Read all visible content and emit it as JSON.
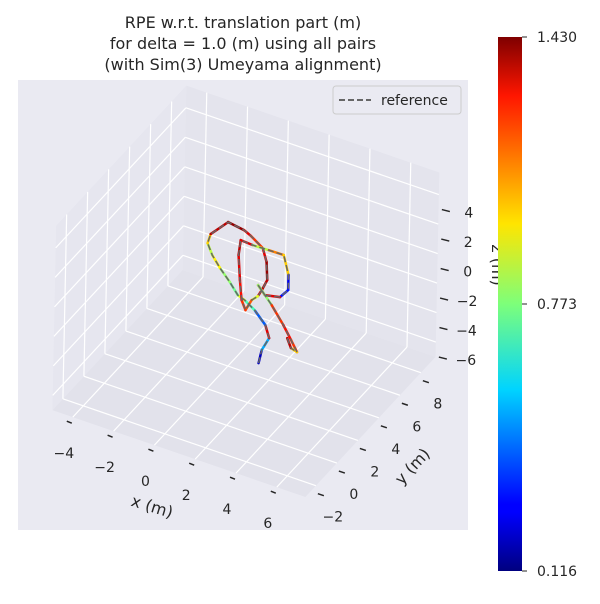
{
  "chart_data": {
    "type": "line",
    "projection": "3d",
    "title": [
      "RPE w.r.t. translation part (m)",
      "for delta = 1.0 (m) using all pairs",
      "(with Sim(3) Umeyama alignment)"
    ],
    "xlabel": "x (m)",
    "ylabel": "y (m)",
    "zlabel": "z (m)",
    "xlim": [
      -5,
      7.4
    ],
    "ylim": [
      -3,
      9.4
    ],
    "zlim": [
      -7,
      5.5
    ],
    "xticks": [
      -4,
      -2,
      0,
      2,
      4,
      6
    ],
    "yticks": [
      -2,
      0,
      2,
      4,
      6,
      8
    ],
    "zticks": [
      4,
      2,
      0,
      -2,
      -4,
      -6
    ],
    "grid": true,
    "legend": {
      "placement": "top-right",
      "entries": [
        {
          "name": "reference",
          "style": "dashed",
          "color": "#666666"
        }
      ]
    },
    "colorbar": {
      "colormap": "jet",
      "min": 0.116,
      "max": 1.43,
      "tick_labels": [
        "1.430",
        "0.773",
        "0.116"
      ],
      "ticks": [
        1.43,
        0.773,
        0.116
      ]
    },
    "trajectory": {
      "x": [
        1.99,
        2.13,
        2.48,
        2.28,
        1.74,
        1.25,
        0.91,
        0.51,
        0.02,
        -0.37,
        -0.61,
        -0.47,
        0.37,
        1.15,
        1.5,
        2.08,
        2.28,
        2.33,
        2.08,
        1.89,
        1.59,
        1.3,
        1.1,
        1.0,
        0.91,
        1.0,
        1.59,
        2.38,
        3.11,
        3.36,
        3.36,
        2.97,
        2.23,
        1.89,
        2.57,
        3.16,
        3.55,
        3.85,
        3.55,
        3.36
      ],
      "y": [
        3,
        3,
        3,
        3,
        3,
        3,
        3,
        3,
        3,
        3,
        3,
        3,
        3,
        3,
        3,
        3,
        3,
        3,
        3,
        3,
        3,
        3,
        3,
        3,
        3,
        3,
        3,
        3,
        3,
        3,
        3,
        3,
        3,
        3,
        3,
        3,
        3,
        3,
        3,
        3
      ],
      "z": [
        -5.09,
        -4.14,
        -3.16,
        -2.37,
        -1.61,
        -1.17,
        -0.99,
        -0.3,
        0.42,
        1.11,
        1.81,
        2.49,
        3.7,
        3.53,
        3.29,
        2.75,
        1.9,
        0.7,
        -0.09,
        -0.6,
        -1.01,
        -1.82,
        -1.24,
        0.07,
        1.72,
        2.78,
        2.72,
        2.75,
        2.77,
        1.53,
        0.51,
        -0.15,
        -0.37,
        0.15,
        -0.88,
        -1.96,
        -2.79,
        -3.46,
        -3.33,
        -2.75
      ],
      "error": [
        0.2,
        0.5,
        1.3,
        0.4,
        0.7,
        0.9,
        0.75,
        0.8,
        0.95,
        0.85,
        1.0,
        1.35,
        1.4,
        1.3,
        1.2,
        1.3,
        1.4,
        1.35,
        1.3,
        0.9,
        1.15,
        1.2,
        1.25,
        1.3,
        1.35,
        1.3,
        0.85,
        1.1,
        1.0,
        0.25,
        0.3,
        1.3,
        1.25,
        0.8,
        1.2,
        1.25,
        1.2,
        1.0,
        1.35,
        1.3
      ]
    },
    "colors": {
      "axes_bg": "#eaeaf2",
      "pane": "#e3e3ec",
      "grid": "#ffffff",
      "reference": "#666666"
    }
  }
}
